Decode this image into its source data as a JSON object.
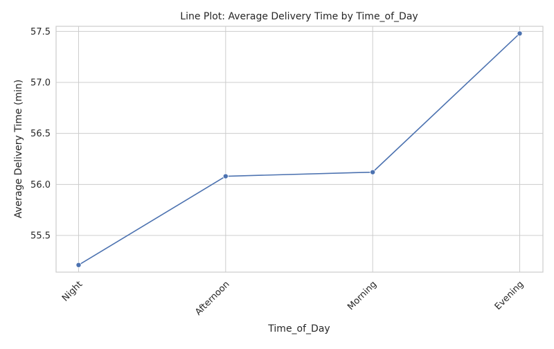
{
  "chart_data": {
    "type": "line",
    "title": "Line Plot: Average Delivery Time by Time_of_Day",
    "xlabel": "Time_of_Day",
    "ylabel": "Average Delivery Time (min)",
    "categories": [
      "Night",
      "Afternoon",
      "Morning",
      "Evening"
    ],
    "series": [
      {
        "values": [
          55.21,
          56.08,
          56.12,
          57.48
        ]
      }
    ],
    "y_ticks": [
      "55.5",
      "56.0",
      "56.5",
      "57.0",
      "57.5"
    ],
    "ylim": [
      55.14,
      57.55
    ],
    "grid": true,
    "markers": true,
    "x_tick_rotation": "45 degrees",
    "colors": {
      "line": "#4c72b0",
      "grid": "#cccccc",
      "spine": "#cccccc",
      "text": "#262626",
      "background": "#ffffff"
    }
  }
}
